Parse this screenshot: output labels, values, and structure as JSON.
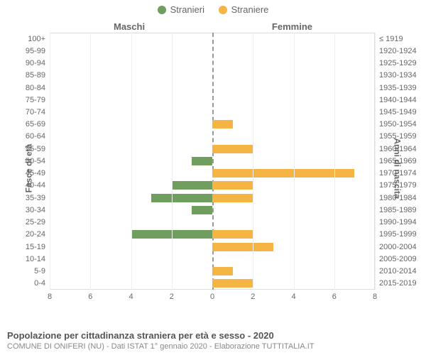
{
  "chart": {
    "type": "population-pyramid",
    "colors": {
      "stranieri": "#6f9e5f",
      "straniere": "#f4b544",
      "background": "#ffffff",
      "grid": "#eeeeee",
      "border": "#dddddd",
      "center_dash": "#999999",
      "text": "#666666"
    },
    "legend": [
      {
        "key": "stranieri",
        "label": "Stranieri"
      },
      {
        "key": "straniere",
        "label": "Straniere"
      }
    ],
    "left_title": "Maschi",
    "right_title": "Femmine",
    "left_axis_label": "Fasce di età",
    "right_axis_label": "Anni di nascita",
    "x_ticks": [
      8,
      6,
      4,
      2,
      0,
      2,
      4,
      6,
      8
    ],
    "x_max": 8,
    "age_bands": [
      "100+",
      "95-99",
      "90-94",
      "85-89",
      "80-84",
      "75-79",
      "70-74",
      "65-69",
      "60-64",
      "55-59",
      "50-54",
      "45-49",
      "40-44",
      "35-39",
      "30-34",
      "25-29",
      "20-24",
      "15-19",
      "10-14",
      "5-9",
      "0-4"
    ],
    "birth_years": [
      "≤ 1919",
      "1920-1924",
      "1925-1929",
      "1930-1934",
      "1935-1939",
      "1940-1944",
      "1945-1949",
      "1950-1954",
      "1955-1959",
      "1960-1964",
      "1965-1969",
      "1970-1974",
      "1975-1979",
      "1980-1984",
      "1985-1989",
      "1990-1994",
      "1995-1999",
      "2000-2004",
      "2005-2009",
      "2010-2014",
      "2015-2019"
    ],
    "male": [
      0,
      0,
      0,
      0,
      0,
      0,
      0,
      0,
      0,
      0,
      1,
      0,
      2,
      3,
      1,
      0,
      4,
      0,
      0,
      0,
      0
    ],
    "female": [
      0,
      0,
      0,
      0,
      0,
      0,
      0,
      1,
      0,
      2,
      0,
      7,
      2,
      2,
      0,
      0,
      2,
      3,
      0,
      1,
      2
    ],
    "bar_height_ratio": 0.7
  },
  "footer": {
    "title": "Popolazione per cittadinanza straniera per età e sesso - 2020",
    "subtitle": "COMUNE DI ONIFERI (NU) - Dati ISTAT 1° gennaio 2020 - Elaborazione TUTTITALIA.IT"
  }
}
